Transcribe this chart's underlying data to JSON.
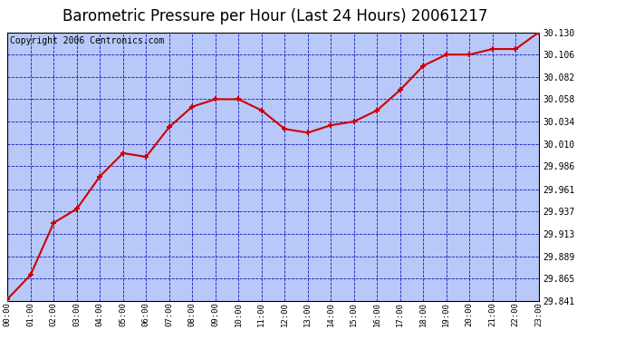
{
  "title": "Barometric Pressure per Hour (Last 24 Hours) 20061217",
  "copyright": "Copyright 2006 Centronics.com",
  "hours": [
    0,
    1,
    2,
    3,
    4,
    5,
    6,
    7,
    8,
    9,
    10,
    11,
    12,
    13,
    14,
    15,
    16,
    17,
    18,
    19,
    20,
    21,
    22,
    23
  ],
  "x_labels": [
    "00:00",
    "01:00",
    "02:00",
    "03:00",
    "04:00",
    "05:00",
    "06:00",
    "07:00",
    "08:00",
    "09:00",
    "10:00",
    "11:00",
    "12:00",
    "13:00",
    "14:00",
    "15:00",
    "16:00",
    "17:00",
    "18:00",
    "19:00",
    "20:00",
    "21:00",
    "22:00",
    "23:00"
  ],
  "pressure": [
    29.843,
    29.869,
    29.925,
    29.94,
    29.975,
    30.0,
    29.996,
    30.028,
    30.05,
    30.058,
    30.058,
    30.046,
    30.026,
    30.022,
    30.03,
    30.034,
    30.046,
    30.068,
    30.094,
    30.106,
    30.106,
    30.112,
    30.112,
    30.13
  ],
  "ylim": [
    29.841,
    30.13
  ],
  "yticks": [
    29.841,
    29.865,
    29.889,
    29.913,
    29.937,
    29.961,
    29.986,
    30.01,
    30.034,
    30.058,
    30.082,
    30.106,
    30.13
  ],
  "line_color": "#cc0000",
  "marker_color": "#cc0000",
  "bg_color": "#b8c8f8",
  "grid_color": "#0000bb",
  "outer_bg": "#ffffff",
  "title_fontsize": 12,
  "copyright_fontsize": 7
}
